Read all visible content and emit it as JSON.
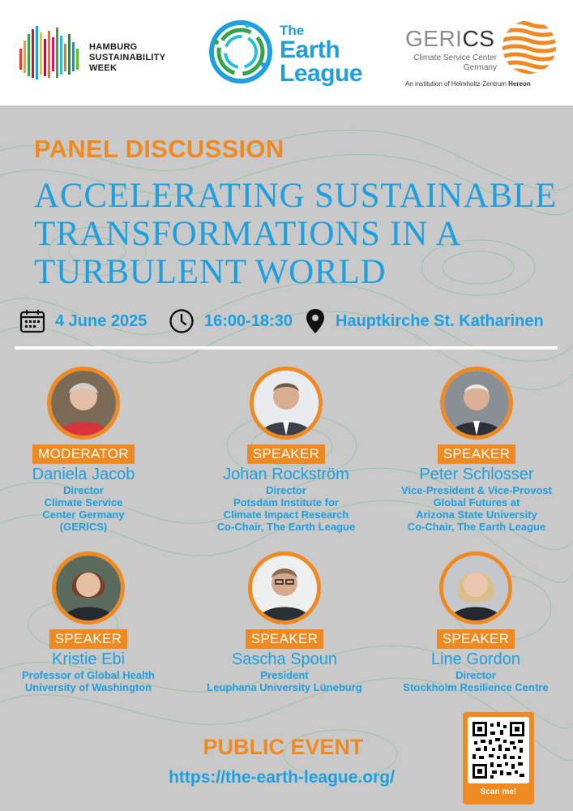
{
  "header": {
    "hsw_logo": {
      "lines": [
        "HAMBURG",
        "SUSTAINABILITY",
        "WEEK"
      ]
    },
    "earth_league_logo": {
      "the": "The",
      "earth": "Earth",
      "league": "League"
    },
    "gerics_logo": {
      "name_part1": "GERI",
      "name_part2": "CS",
      "subtitle_line1": "Climate Service Center",
      "subtitle_line2": "Germany",
      "institution_prefix": "An institution of Helmholtz-Zentrum",
      "institution_bold": "Hereon"
    }
  },
  "event": {
    "label": "PANEL DISCUSSION",
    "title_lines": [
      "ACCELERATING SUSTAINABLE",
      "TRANSFORMATIONS IN A",
      "TURBULENT WORLD"
    ],
    "date": "4 June 2025",
    "time": "16:00-18:30",
    "location": "Hauptkirche St. Katharinen"
  },
  "people": [
    {
      "role": "MODERATOR",
      "name": "Daniela Jacob",
      "lines": [
        "Director",
        "Climate Service",
        "Center Germany",
        "(GERICS)"
      ]
    },
    {
      "role": "SPEAKER",
      "name": "Johan Rockström",
      "lines": [
        "Director",
        "Potsdam Institute for",
        "Climate Impact Research",
        "Co-Chair, The Earth League"
      ]
    },
    {
      "role": "SPEAKER",
      "name": "Peter Schlosser",
      "lines": [
        "Vice-President & Vice-Provost",
        "Global Futures at",
        "Arizona State University",
        "Co-Chair, The Earth League"
      ]
    },
    {
      "role": "SPEAKER",
      "name": "Kristie Ebi",
      "lines": [
        "Professor of Global Health",
        "University of Washington"
      ]
    },
    {
      "role": "SPEAKER",
      "name": "Sascha Spoun",
      "lines": [
        "President",
        "Leuphana University Lüneburg"
      ]
    },
    {
      "role": "SPEAKER",
      "name": "Line Gordon",
      "lines": [
        "Director",
        "Stockholm Resilience Centre"
      ]
    }
  ],
  "footer": {
    "public_label": "PUBLIC EVENT",
    "url": "https://the-earth-league.org/",
    "qr_label": "Scan me!"
  },
  "icons": {
    "date": "calendar-icon",
    "time": "clock-icon",
    "location": "map-pin-icon"
  },
  "colors": {
    "accent_orange": "#ef8a22",
    "accent_blue": "#1e9fe0",
    "background_gray": "#c9c9c9",
    "contour_green": "#8cc59a"
  }
}
